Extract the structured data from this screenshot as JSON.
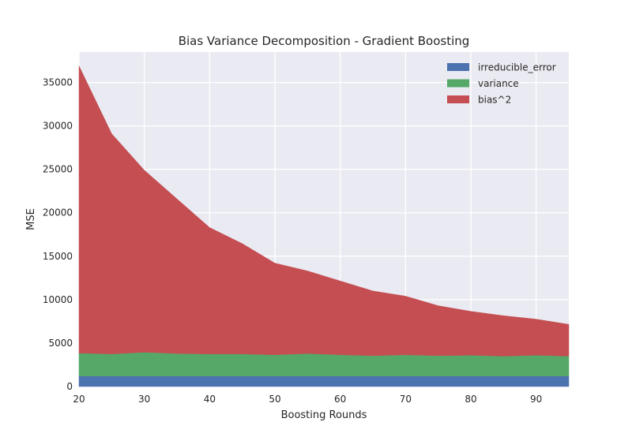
{
  "chart_data": {
    "type": "area",
    "stacked": true,
    "title": "Bias Variance Decomposition - Gradient Boosting",
    "xlabel": "Boosting Rounds",
    "ylabel": "MSE",
    "xlim": [
      20,
      95
    ],
    "ylim": [
      0,
      38500
    ],
    "xticks": [
      20,
      30,
      40,
      50,
      60,
      70,
      80,
      90
    ],
    "yticks": [
      0,
      5000,
      10000,
      15000,
      20000,
      25000,
      30000,
      35000
    ],
    "grid": true,
    "legend_position": "top-right",
    "x": [
      20,
      25,
      30,
      35,
      40,
      45,
      50,
      55,
      60,
      65,
      70,
      75,
      80,
      85,
      90,
      95
    ],
    "series": [
      {
        "name": "irreducible_error",
        "color": "#4c72b0",
        "values": [
          1200,
          1200,
          1200,
          1200,
          1200,
          1200,
          1200,
          1200,
          1200,
          1200,
          1200,
          1200,
          1200,
          1200,
          1200,
          1200
        ]
      },
      {
        "name": "variance",
        "color": "#55a868",
        "values": [
          2650,
          2550,
          2750,
          2600,
          2550,
          2550,
          2450,
          2600,
          2450,
          2350,
          2450,
          2350,
          2400,
          2300,
          2400,
          2300
        ]
      },
      {
        "name": "bias^2",
        "color": "#c44e52",
        "values": [
          33050,
          25350,
          20950,
          17800,
          14550,
          12700,
          10550,
          9500,
          8500,
          7450,
          6750,
          5750,
          5050,
          4650,
          4150,
          3650
        ]
      }
    ]
  }
}
